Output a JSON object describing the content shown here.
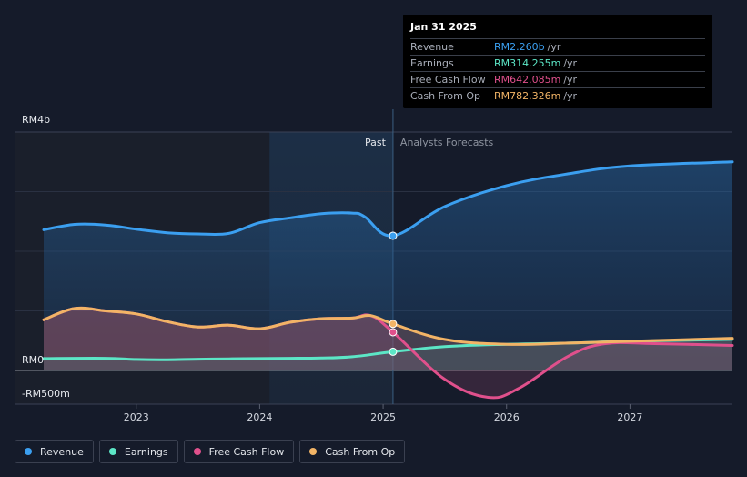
{
  "tooltip": {
    "date": "Jan 31 2025",
    "rows": [
      {
        "label": "Revenue",
        "value": "RM2.260b",
        "unit": "/yr",
        "color": "#3b9ff0"
      },
      {
        "label": "Earnings",
        "value": "RM314.255m",
        "unit": "/yr",
        "color": "#5ce6c6"
      },
      {
        "label": "Free Cash Flow",
        "value": "RM642.085m",
        "unit": "/yr",
        "color": "#e0508c"
      },
      {
        "label": "Cash From Op",
        "value": "RM782.326m",
        "unit": "/yr",
        "color": "#f2b466"
      }
    ]
  },
  "regions": {
    "past": "Past",
    "forecast": "Analysts Forecasts"
  },
  "legend": [
    {
      "label": "Revenue",
      "color": "#3b9ff0"
    },
    {
      "label": "Earnings",
      "color": "#5ce6c6"
    },
    {
      "label": "Free Cash Flow",
      "color": "#e0508c"
    },
    {
      "label": "Cash From Op",
      "color": "#f2b466"
    }
  ],
  "chart_data": {
    "type": "line",
    "x_ticks": [
      "2023",
      "2024",
      "2025",
      "2026",
      "2027"
    ],
    "y_ticks": [
      "RM4b",
      "RM0",
      "-RM500m"
    ],
    "y_tick_values": [
      4000,
      0,
      -500
    ],
    "ylim": [
      -600,
      4000
    ],
    "xlim": [
      2022.25,
      2027.83
    ],
    "past_end": 2025.08,
    "highlight_start": 2024.08,
    "series": [
      {
        "name": "Revenue",
        "color": "#3b9ff0",
        "points": [
          [
            2022.25,
            2360
          ],
          [
            2022.5,
            2450
          ],
          [
            2022.75,
            2440
          ],
          [
            2023.0,
            2370
          ],
          [
            2023.25,
            2310
          ],
          [
            2023.5,
            2290
          ],
          [
            2023.75,
            2300
          ],
          [
            2024.0,
            2480
          ],
          [
            2024.25,
            2560
          ],
          [
            2024.5,
            2630
          ],
          [
            2024.75,
            2640
          ],
          [
            2024.85,
            2580
          ],
          [
            2025.08,
            2260
          ],
          [
            2025.5,
            2750
          ],
          [
            2026.0,
            3100
          ],
          [
            2026.5,
            3300
          ],
          [
            2027.0,
            3430
          ],
          [
            2027.83,
            3500
          ]
        ]
      },
      {
        "name": "Earnings",
        "color": "#5ce6c6",
        "points": [
          [
            2022.25,
            200
          ],
          [
            2022.75,
            205
          ],
          [
            2023.0,
            185
          ],
          [
            2023.25,
            180
          ],
          [
            2023.5,
            190
          ],
          [
            2023.75,
            195
          ],
          [
            2024.0,
            200
          ],
          [
            2024.25,
            205
          ],
          [
            2024.5,
            210
          ],
          [
            2024.75,
            230
          ],
          [
            2025.08,
            314
          ],
          [
            2025.5,
            400
          ],
          [
            2026.0,
            440
          ],
          [
            2026.5,
            460
          ],
          [
            2027.0,
            490
          ],
          [
            2027.83,
            520
          ]
        ]
      },
      {
        "name": "Free Cash Flow",
        "color": "#e0508c",
        "points": [
          [
            2022.25,
            850
          ],
          [
            2022.5,
            1040
          ],
          [
            2022.75,
            1000
          ],
          [
            2023.0,
            950
          ],
          [
            2023.25,
            820
          ],
          [
            2023.5,
            730
          ],
          [
            2023.75,
            760
          ],
          [
            2024.0,
            700
          ],
          [
            2024.25,
            810
          ],
          [
            2024.5,
            870
          ],
          [
            2024.75,
            880
          ],
          [
            2024.9,
            920
          ],
          [
            2025.08,
            642
          ],
          [
            2025.5,
            -150
          ],
          [
            2025.85,
            -450
          ],
          [
            2026.1,
            -300
          ],
          [
            2026.5,
            240
          ],
          [
            2026.8,
            450
          ],
          [
            2027.2,
            450
          ],
          [
            2027.83,
            420
          ]
        ]
      },
      {
        "name": "Cash From Op",
        "color": "#f2b466",
        "points": [
          [
            2022.25,
            850
          ],
          [
            2022.5,
            1040
          ],
          [
            2022.75,
            1000
          ],
          [
            2023.0,
            950
          ],
          [
            2023.25,
            820
          ],
          [
            2023.5,
            730
          ],
          [
            2023.75,
            760
          ],
          [
            2024.0,
            700
          ],
          [
            2024.25,
            810
          ],
          [
            2024.5,
            870
          ],
          [
            2024.75,
            880
          ],
          [
            2024.9,
            920
          ],
          [
            2025.08,
            782
          ],
          [
            2025.5,
            520
          ],
          [
            2026.0,
            440
          ],
          [
            2026.5,
            460
          ],
          [
            2027.0,
            490
          ],
          [
            2027.83,
            540
          ]
        ]
      }
    ]
  }
}
